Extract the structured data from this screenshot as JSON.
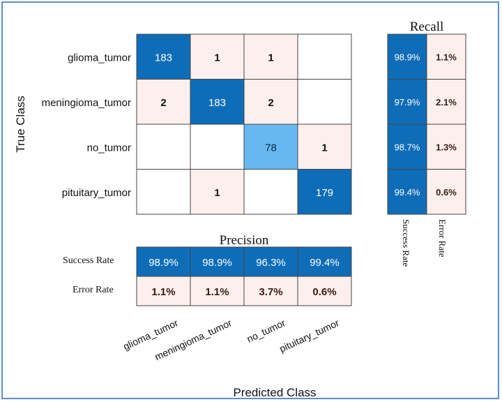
{
  "chart_data": {
    "type": "heatmap",
    "subtype": "confusion_matrix",
    "classes": [
      "glioma_tumor",
      "meningioma_tumor",
      "no_tumor",
      "pituitary_tumor"
    ],
    "matrix": [
      [
        183,
        1,
        1,
        null
      ],
      [
        2,
        183,
        2,
        null
      ],
      [
        null,
        null,
        78,
        1
      ],
      [
        null,
        1,
        null,
        179
      ]
    ],
    "xlabel": "Predicted Class",
    "ylabel": "True Class",
    "recall": {
      "title": "Recall",
      "columns": [
        "Success Rate",
        "Error Rate"
      ],
      "success": [
        "98.9%",
        "97.9%",
        "98.7%",
        "99.4%"
      ],
      "error": [
        "1.1%",
        "2.1%",
        "1.3%",
        "0.6%"
      ]
    },
    "precision": {
      "title": "Precision",
      "rows": [
        "Success Rate",
        "Error Rate"
      ],
      "success": [
        "98.9%",
        "98.9%",
        "96.3%",
        "99.4%"
      ],
      "error": [
        "1.1%",
        "1.1%",
        "3.7%",
        "0.6%"
      ]
    },
    "colors": {
      "diagonal": "#0f6db8",
      "diagonal_light": "#66b8f0",
      "offdiag": "#fdf0ec",
      "empty": "#ffffff",
      "grid": "#444444"
    }
  }
}
